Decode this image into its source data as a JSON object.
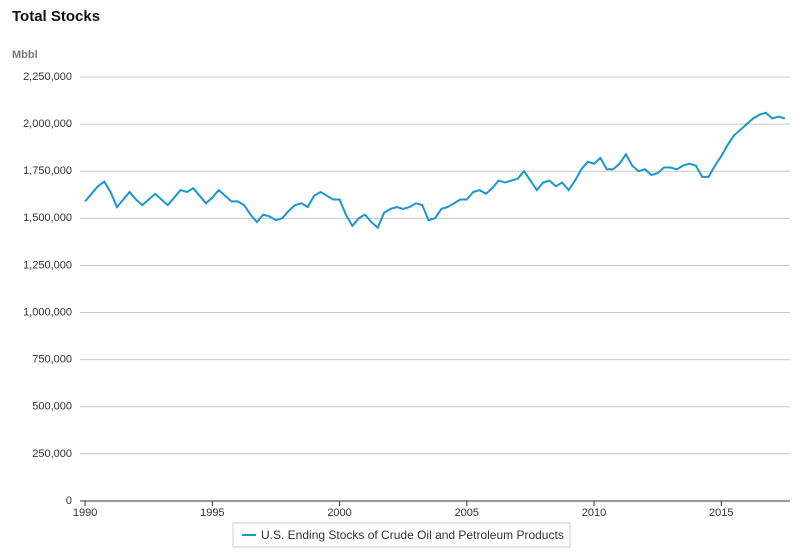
{
  "chart_data": {
    "type": "line",
    "title": "Total Stocks",
    "y_label": "Mbbl",
    "x": [
      1990,
      1990.25,
      1990.5,
      1990.75,
      1991,
      1991.25,
      1991.5,
      1991.75,
      1992,
      1992.25,
      1992.5,
      1992.75,
      1993,
      1993.25,
      1993.5,
      1993.75,
      1994,
      1994.25,
      1994.5,
      1994.75,
      1995,
      1995.25,
      1995.5,
      1995.75,
      1996,
      1996.25,
      1996.5,
      1996.75,
      1997,
      1997.25,
      1997.5,
      1997.75,
      1998,
      1998.25,
      1998.5,
      1998.75,
      1999,
      1999.25,
      1999.5,
      1999.75,
      2000,
      2000.25,
      2000.5,
      2000.75,
      2001,
      2001.25,
      2001.5,
      2001.75,
      2002,
      2002.25,
      2002.5,
      2002.75,
      2003,
      2003.25,
      2003.5,
      2003.75,
      2004,
      2004.25,
      2004.5,
      2004.75,
      2005,
      2005.25,
      2005.5,
      2005.75,
      2006,
      2006.25,
      2006.5,
      2006.75,
      2007,
      2007.25,
      2007.5,
      2007.75,
      2008,
      2008.25,
      2008.5,
      2008.75,
      2009,
      2009.25,
      2009.5,
      2009.75,
      2010,
      2010.25,
      2010.5,
      2010.75,
      2011,
      2011.25,
      2011.5,
      2011.75,
      2012,
      2012.25,
      2012.5,
      2012.75,
      2013,
      2013.25,
      2013.5,
      2013.75,
      2014,
      2014.25,
      2014.5,
      2014.75,
      2015,
      2015.25,
      2015.5,
      2015.75,
      2016,
      2016.25,
      2016.5,
      2016.75,
      2017,
      2017.25,
      2017.5
    ],
    "series": [
      {
        "name": "U.S. Ending Stocks of Crude Oil and Petroleum Products",
        "color": "#1a96d0",
        "values": [
          1590000,
          1630000,
          1670000,
          1695000,
          1640000,
          1560000,
          1600000,
          1640000,
          1600000,
          1570000,
          1600000,
          1630000,
          1600000,
          1570000,
          1610000,
          1650000,
          1640000,
          1660000,
          1620000,
          1580000,
          1610000,
          1650000,
          1620000,
          1590000,
          1590000,
          1570000,
          1520000,
          1480000,
          1520000,
          1510000,
          1490000,
          1500000,
          1540000,
          1570000,
          1580000,
          1560000,
          1620000,
          1640000,
          1620000,
          1600000,
          1600000,
          1520000,
          1460000,
          1500000,
          1520000,
          1480000,
          1450000,
          1530000,
          1550000,
          1560000,
          1550000,
          1560000,
          1580000,
          1570000,
          1490000,
          1500000,
          1550000,
          1560000,
          1580000,
          1600000,
          1600000,
          1640000,
          1650000,
          1630000,
          1660000,
          1700000,
          1690000,
          1700000,
          1710000,
          1750000,
          1700000,
          1650000,
          1690000,
          1700000,
          1670000,
          1690000,
          1650000,
          1700000,
          1760000,
          1800000,
          1790000,
          1820000,
          1760000,
          1760000,
          1790000,
          1840000,
          1780000,
          1750000,
          1760000,
          1730000,
          1740000,
          1770000,
          1770000,
          1760000,
          1780000,
          1790000,
          1780000,
          1720000,
          1720000,
          1780000,
          1830000,
          1890000,
          1940000,
          1970000,
          2000000,
          2030000,
          2050000,
          2060000,
          2030000,
          2040000,
          2030000
        ]
      }
    ],
    "xlim": [
      1989.8,
      2017.7
    ],
    "xticks": [
      1990,
      1995,
      2000,
      2005,
      2010,
      2015
    ],
    "ylim": [
      0,
      2250000
    ],
    "yticks": [
      0,
      {
        "value": 250000,
        "label": "250,000"
      },
      {
        "value": 500000,
        "label": "500,000"
      },
      {
        "value": 750000,
        "label": "750,000"
      },
      {
        "value": 1000000,
        "label": "1,000,000"
      },
      {
        "value": 1250000,
        "label": "1,250,000"
      },
      {
        "value": 1500000,
        "label": "1,500,000"
      },
      {
        "value": 1750000,
        "label": "1,750,000"
      },
      {
        "value": 2000000,
        "label": "2,000,000"
      },
      {
        "value": 2250000,
        "label": "2,250,000"
      }
    ],
    "grid": true
  }
}
